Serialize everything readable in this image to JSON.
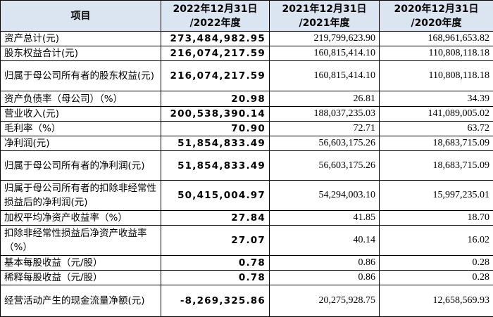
{
  "table": {
    "header": [
      "项目",
      [
        "2022年12月31日",
        "/2022年度"
      ],
      [
        "2021年12月31日",
        "/2021年度"
      ],
      [
        "2020年12月31日",
        "/2020年度"
      ]
    ],
    "rows": [
      [
        "资产总计(元)",
        "273,484,982.95",
        "219,799,623.90",
        "168,961,653.82"
      ],
      [
        "股东权益合计(元)",
        "216,074,217.59",
        "160,815,414.10",
        "110,808,118.18"
      ],
      [
        "归属于母公司所有者的股东权益(元)",
        "216,074,217.59",
        "160,815,414.10",
        "110,808,118.18"
      ],
      [
        "资产负债率（母公司）（%）",
        "20.98",
        "26.81",
        "34.39"
      ],
      [
        "营业收入(元)",
        "200,538,390.14",
        "188,037,235.03",
        "141,089,005.02"
      ],
      [
        "毛利率（%）",
        "70.90",
        "72.71",
        "63.72"
      ],
      [
        "净利润(元)",
        "51,854,833.49",
        "56,603,175.26",
        "18,683,715.09"
      ],
      [
        "归属于母公司所有者的净利润(元)",
        "51,854,833.49",
        "56,603,175.26",
        "18,683,715.09"
      ],
      [
        "归属于母公司所有者的扣除非经常性损益后的净利润(元)",
        "50,415,004.97",
        "54,294,003.10",
        "15,997,235.01"
      ],
      [
        "加权平均净资产收益率（%）",
        "27.84",
        "41.85",
        "18.70"
      ],
      [
        "扣除非经常性损益后净资产收益率（%）",
        "27.07",
        "40.14",
        "16.02"
      ],
      [
        "基本每股收益（元/股）",
        "0.78",
        "0.86",
        "0.28"
      ],
      [
        "稀释每股收益（元/股）",
        "0.78",
        "0.86",
        "0.28"
      ],
      [
        "经营活动产生的现金流量净额(元)",
        "-8,269,325.86",
        "20,275,928.75",
        "12,658,569.93"
      ]
    ]
  }
}
